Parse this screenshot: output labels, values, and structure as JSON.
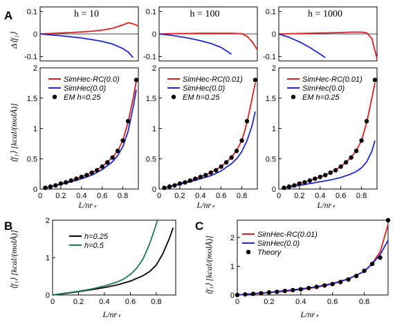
{
  "figure": {
    "panel_labels": [
      "A",
      "B",
      "C"
    ],
    "x_axis_label": "L/nr₊",
    "y_axis_label_top": "Δ⟨f₁⟩",
    "y_axis_label_main": "⟨f₁⟩ [kcal/(molÅ)]"
  },
  "colors": {
    "red": "#dc1e1e",
    "blue": "#1e28c8",
    "black": "#000000",
    "green": "#1e7850"
  },
  "chart_data": [
    {
      "id": "A-top-h10",
      "type": "line",
      "title": "h = 10",
      "xlabel": "",
      "ylabel": "Δ⟨f₁⟩",
      "xlim": [
        0,
        0.95
      ],
      "ylim": [
        -0.12,
        0.12
      ],
      "yticks": [
        -0.1,
        0,
        0.1
      ],
      "ytick_labels": [
        "-0.1",
        "0",
        "0.1"
      ],
      "series": [
        {
          "name": "",
          "color": "red",
          "x": [
            0,
            0.1,
            0.2,
            0.3,
            0.4,
            0.5,
            0.6,
            0.7,
            0.8,
            0.85,
            0.9,
            0.95
          ],
          "y": [
            0,
            0.002,
            0.004,
            0.006,
            0.009,
            0.012,
            0.017,
            0.025,
            0.04,
            0.05,
            0.045,
            0.035
          ]
        },
        {
          "name": "",
          "color": "blue",
          "x": [
            0,
            0.1,
            0.2,
            0.3,
            0.4,
            0.5,
            0.6,
            0.7,
            0.8,
            0.85,
            0.9
          ],
          "y": [
            0,
            -0.004,
            -0.008,
            -0.013,
            -0.018,
            -0.025,
            -0.033,
            -0.045,
            -0.065,
            -0.08,
            -0.105
          ]
        }
      ]
    },
    {
      "id": "A-top-h100",
      "type": "line",
      "title": "h = 100",
      "xlabel": "",
      "ylabel": "",
      "xlim": [
        0,
        0.95
      ],
      "ylim": [
        -0.12,
        0.12
      ],
      "yticks": [
        -0.1,
        0,
        0.1
      ],
      "ytick_labels": [
        "-0.1",
        "0",
        "0.1"
      ],
      "series": [
        {
          "name": "",
          "color": "red",
          "x": [
            0,
            0.1,
            0.2,
            0.3,
            0.4,
            0.5,
            0.6,
            0.7,
            0.8,
            0.85,
            0.9,
            0.95
          ],
          "y": [
            0,
            0.001,
            0.002,
            0.002,
            0.003,
            0.003,
            0.003,
            0.003,
            0.001,
            -0.01,
            -0.035,
            -0.07
          ]
        },
        {
          "name": "",
          "color": "blue",
          "x": [
            0,
            0.1,
            0.2,
            0.3,
            0.4,
            0.5,
            0.6,
            0.7
          ],
          "y": [
            0,
            -0.005,
            -0.012,
            -0.02,
            -0.03,
            -0.042,
            -0.06,
            -0.09
          ]
        }
      ]
    },
    {
      "id": "A-top-h1000",
      "type": "line",
      "title": "h = 1000",
      "xlabel": "",
      "ylabel": "",
      "xlim": [
        0,
        0.95
      ],
      "ylim": [
        -0.12,
        0.12
      ],
      "yticks": [
        -0.1,
        0,
        0.1
      ],
      "ytick_labels": [
        "-0.1",
        "0",
        "0.1"
      ],
      "series": [
        {
          "name": "",
          "color": "red",
          "x": [
            0,
            0.1,
            0.2,
            0.3,
            0.4,
            0.5,
            0.6,
            0.7,
            0.8,
            0.85,
            0.9,
            0.95
          ],
          "y": [
            0,
            0.001,
            0.002,
            0.003,
            0.004,
            0.005,
            0.006,
            0.008,
            0.008,
            0.005,
            -0.02,
            -0.11
          ]
        },
        {
          "name": "",
          "color": "blue",
          "x": [
            0,
            0.1,
            0.2,
            0.3,
            0.4,
            0.45
          ],
          "y": [
            0,
            -0.015,
            -0.035,
            -0.06,
            -0.09,
            -0.105
          ]
        }
      ]
    },
    {
      "id": "A-main-h10",
      "type": "line",
      "xlabel": "L/nr₊",
      "ylabel": "⟨f₁⟩ [kcal/(molÅ)]",
      "xlim": [
        0,
        0.95
      ],
      "ylim": [
        0,
        2
      ],
      "xticks": [
        0,
        0.2,
        0.4,
        0.6,
        0.8
      ],
      "xtick_labels": [
        "0",
        "0.2",
        "0.4",
        "0.6",
        "0.8"
      ],
      "yticks": [
        0,
        0.5,
        1,
        1.5,
        2
      ],
      "ytick_labels": [
        "0",
        "0.5",
        "1",
        "1.5",
        "2"
      ],
      "legend": [
        "SimHec-RC(0.0)",
        "SimHec(0.0)",
        "EM h=0.25"
      ],
      "series": [
        {
          "name": "SimHec-RC(0.0)",
          "color": "red",
          "style": "line",
          "x": [
            0.05,
            0.1,
            0.2,
            0.3,
            0.4,
            0.5,
            0.6,
            0.7,
            0.75,
            0.8,
            0.85,
            0.9,
            0.93
          ],
          "y": [
            0.02,
            0.04,
            0.09,
            0.14,
            0.2,
            0.27,
            0.37,
            0.52,
            0.63,
            0.8,
            1.1,
            1.5,
            1.78
          ]
        },
        {
          "name": "SimHec(0.0)",
          "color": "blue",
          "style": "line",
          "x": [
            0.05,
            0.1,
            0.2,
            0.3,
            0.4,
            0.5,
            0.6,
            0.7,
            0.75,
            0.8,
            0.85,
            0.9,
            0.93
          ],
          "y": [
            0.02,
            0.035,
            0.08,
            0.12,
            0.17,
            0.23,
            0.32,
            0.45,
            0.55,
            0.7,
            0.95,
            1.35,
            1.64
          ]
        },
        {
          "name": "EM h=0.25",
          "color": "black",
          "style": "markers",
          "x": [
            0.05,
            0.1,
            0.15,
            0.2,
            0.25,
            0.3,
            0.35,
            0.4,
            0.45,
            0.5,
            0.55,
            0.6,
            0.65,
            0.7,
            0.75,
            0.8,
            0.85,
            0.93
          ],
          "y": [
            0.02,
            0.04,
            0.06,
            0.09,
            0.11,
            0.14,
            0.17,
            0.2,
            0.23,
            0.27,
            0.31,
            0.37,
            0.44,
            0.52,
            0.63,
            0.8,
            1.12,
            1.8
          ]
        }
      ]
    },
    {
      "id": "A-main-h100",
      "type": "line",
      "xlabel": "L/nr₊",
      "ylabel": "",
      "xlim": [
        0,
        0.95
      ],
      "ylim": [
        0,
        2
      ],
      "xticks": [
        0,
        0.2,
        0.4,
        0.6,
        0.8
      ],
      "xtick_labels": [
        "0",
        "0.2",
        "0.4",
        "0.6",
        "0.8"
      ],
      "yticks": [
        0,
        0.5,
        1,
        1.5,
        2
      ],
      "ytick_labels": [
        "0",
        "0.5",
        "1",
        "1.5",
        "2"
      ],
      "legend": [
        "SimHec-RC(0.01)",
        "SimHec(0.0)",
        "EM h=0.25"
      ],
      "series": [
        {
          "name": "SimHec-RC(0.01)",
          "color": "red",
          "style": "line",
          "x": [
            0.05,
            0.1,
            0.2,
            0.3,
            0.4,
            0.5,
            0.6,
            0.7,
            0.75,
            0.8,
            0.85,
            0.9,
            0.93
          ],
          "y": [
            0.02,
            0.04,
            0.09,
            0.14,
            0.2,
            0.27,
            0.37,
            0.52,
            0.64,
            0.8,
            1.1,
            1.5,
            1.75
          ]
        },
        {
          "name": "SimHec(0.0)",
          "color": "blue",
          "style": "line",
          "x": [
            0.05,
            0.1,
            0.2,
            0.3,
            0.4,
            0.5,
            0.6,
            0.7,
            0.75,
            0.8,
            0.85,
            0.9,
            0.93
          ],
          "y": [
            0.02,
            0.035,
            0.08,
            0.12,
            0.17,
            0.22,
            0.3,
            0.42,
            0.5,
            0.62,
            0.8,
            1.05,
            1.28
          ]
        },
        {
          "name": "EM h=0.25",
          "color": "black",
          "style": "markers",
          "x": [
            0.05,
            0.1,
            0.15,
            0.2,
            0.25,
            0.3,
            0.35,
            0.4,
            0.45,
            0.5,
            0.55,
            0.6,
            0.65,
            0.7,
            0.75,
            0.8,
            0.85,
            0.93
          ],
          "y": [
            0.02,
            0.04,
            0.06,
            0.09,
            0.11,
            0.14,
            0.17,
            0.2,
            0.23,
            0.27,
            0.31,
            0.37,
            0.44,
            0.52,
            0.63,
            0.8,
            1.12,
            1.8
          ]
        }
      ]
    },
    {
      "id": "A-main-h1000",
      "type": "line",
      "xlabel": "L/nr₊",
      "ylabel": "",
      "xlim": [
        0,
        0.95
      ],
      "ylim": [
        0,
        2
      ],
      "xticks": [
        0,
        0.2,
        0.4,
        0.6,
        0.8
      ],
      "xtick_labels": [
        "0",
        "0.2",
        "0.4",
        "0.6",
        "0.8"
      ],
      "yticks": [
        0,
        0.5,
        1,
        1.5,
        2
      ],
      "ytick_labels": [
        "0",
        "0.5",
        "1",
        "1.5",
        "2"
      ],
      "legend": [
        "SimHec-RC(0.01)",
        "SimHec(0.0)",
        "EM h=0.25"
      ],
      "series": [
        {
          "name": "SimHec-RC(0.01)",
          "color": "red",
          "style": "line",
          "x": [
            0.05,
            0.1,
            0.2,
            0.3,
            0.4,
            0.5,
            0.6,
            0.7,
            0.75,
            0.8,
            0.85,
            0.9,
            0.93
          ],
          "y": [
            0.02,
            0.04,
            0.09,
            0.14,
            0.2,
            0.27,
            0.37,
            0.52,
            0.64,
            0.8,
            1.1,
            1.5,
            1.75
          ]
        },
        {
          "name": "SimHec(0.0)",
          "color": "blue",
          "style": "line",
          "x": [
            0.05,
            0.1,
            0.2,
            0.3,
            0.4,
            0.5,
            0.6,
            0.7,
            0.75,
            0.8,
            0.85,
            0.9,
            0.93
          ],
          "y": [
            0.015,
            0.03,
            0.06,
            0.09,
            0.12,
            0.15,
            0.19,
            0.25,
            0.29,
            0.35,
            0.45,
            0.62,
            0.8
          ]
        },
        {
          "name": "EM h=0.25",
          "color": "black",
          "style": "markers",
          "x": [
            0.05,
            0.1,
            0.15,
            0.2,
            0.25,
            0.3,
            0.35,
            0.4,
            0.45,
            0.5,
            0.55,
            0.6,
            0.65,
            0.7,
            0.75,
            0.8,
            0.85,
            0.93
          ],
          "y": [
            0.02,
            0.04,
            0.06,
            0.09,
            0.11,
            0.14,
            0.17,
            0.2,
            0.23,
            0.27,
            0.31,
            0.37,
            0.44,
            0.52,
            0.63,
            0.8,
            1.12,
            1.8
          ]
        }
      ]
    },
    {
      "id": "B",
      "type": "line",
      "xlabel": "L/nr₊",
      "ylabel": "⟨f₁⟩ [kcal/(molÅ)]",
      "xlim": [
        0,
        0.95
      ],
      "ylim": [
        0,
        2
      ],
      "xticks": [
        0,
        0.2,
        0.4,
        0.6,
        0.8
      ],
      "xtick_labels": [
        "0",
        "0.2",
        "0.4",
        "0.6",
        "0.8"
      ],
      "yticks": [
        0,
        1,
        2
      ],
      "ytick_labels": [
        "0",
        "1",
        "2"
      ],
      "legend": [
        "h=0.25",
        "h=0.5"
      ],
      "series": [
        {
          "name": "h=0.25",
          "color": "black",
          "style": "line",
          "x": [
            0,
            0.1,
            0.2,
            0.3,
            0.4,
            0.5,
            0.6,
            0.7,
            0.75,
            0.8,
            0.85,
            0.9,
            0.93
          ],
          "y": [
            0,
            0.04,
            0.09,
            0.14,
            0.2,
            0.27,
            0.37,
            0.52,
            0.63,
            0.8,
            1.1,
            1.5,
            1.8
          ]
        },
        {
          "name": "h=0.5",
          "color": "green",
          "style": "line",
          "x": [
            0,
            0.1,
            0.2,
            0.3,
            0.4,
            0.5,
            0.55,
            0.6,
            0.65,
            0.7,
            0.75,
            0.78,
            0.81
          ],
          "y": [
            0,
            0.05,
            0.1,
            0.16,
            0.24,
            0.35,
            0.43,
            0.55,
            0.72,
            0.98,
            1.38,
            1.68,
            2.0
          ]
        }
      ]
    },
    {
      "id": "C",
      "type": "line",
      "xlabel": "L/nr₊",
      "ylabel": "⟨f₁⟩ [kcal/(molÅ)]",
      "xlim": [
        0,
        0.95
      ],
      "ylim": [
        0,
        2.6
      ],
      "xticks": [
        0,
        0.2,
        0.4,
        0.6,
        0.8
      ],
      "xtick_labels": [
        "0",
        "0.2",
        "0.4",
        "0.6",
        "0.8"
      ],
      "yticks": [
        0,
        1,
        2
      ],
      "ytick_labels": [
        "0",
        "1",
        "2"
      ],
      "legend": [
        "SimHec-RC(0.01)",
        "SimHec(0.0)",
        "Theory"
      ],
      "series": [
        {
          "name": "SimHec-RC(0.01)",
          "color": "red",
          "style": "line",
          "x": [
            0,
            0.1,
            0.2,
            0.3,
            0.4,
            0.5,
            0.6,
            0.7,
            0.8,
            0.85,
            0.9,
            0.95
          ],
          "y": [
            0,
            0.04,
            0.08,
            0.13,
            0.19,
            0.27,
            0.38,
            0.55,
            0.82,
            1.1,
            1.5,
            2.45
          ]
        },
        {
          "name": "SimHec(0.0)",
          "color": "blue",
          "style": "line",
          "x": [
            0,
            0.1,
            0.2,
            0.3,
            0.4,
            0.5,
            0.6,
            0.7,
            0.8,
            0.85,
            0.9,
            0.95
          ],
          "y": [
            0,
            0.05,
            0.09,
            0.15,
            0.21,
            0.29,
            0.4,
            0.56,
            0.82,
            1.08,
            1.4,
            1.9
          ]
        },
        {
          "name": "Theory",
          "color": "black",
          "style": "markers",
          "x": [
            0,
            0.05,
            0.1,
            0.15,
            0.2,
            0.25,
            0.3,
            0.35,
            0.4,
            0.45,
            0.5,
            0.55,
            0.6,
            0.65,
            0.7,
            0.75,
            0.8,
            0.85,
            0.9,
            0.95
          ],
          "y": [
            0,
            0.02,
            0.04,
            0.06,
            0.09,
            0.11,
            0.14,
            0.17,
            0.2,
            0.24,
            0.28,
            0.33,
            0.38,
            0.45,
            0.54,
            0.66,
            0.84,
            1.08,
            1.3,
            2.6
          ]
        }
      ]
    }
  ]
}
